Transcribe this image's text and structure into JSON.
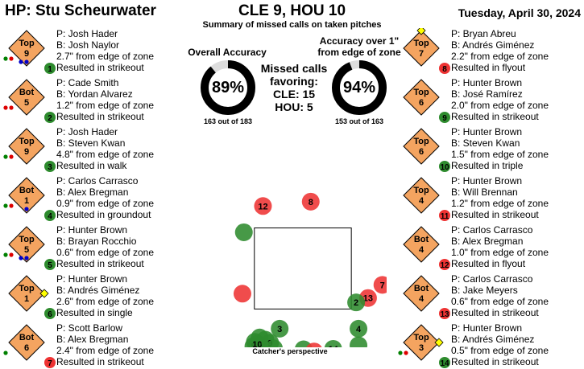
{
  "header": {
    "umpire": "HP: Stu Scheurwater",
    "score": "CLE 9, HOU 10",
    "subtitle": "Summary of missed calls on taken pitches",
    "date": "Tuesday, April 30, 2024"
  },
  "accuracy": {
    "overall_label": "Overall Accuracy",
    "overall_pct": "89%",
    "overall_value": 89,
    "overall_count": "163 out of 183",
    "over1_label_line1": "Accuracy over 1\"",
    "over1_label_line2": "from edge of zone",
    "over1_pct": "94%",
    "over1_value": 94,
    "over1_count": "153 out of 163"
  },
  "favoring": {
    "line1": "Missed calls",
    "line2": "favoring:",
    "cle": "CLE: 15",
    "hou": "HOU: 5"
  },
  "catcher_label": "Catcher's perspective",
  "colors": {
    "green": "#2e8b2e",
    "red": "#ee3333",
    "diamond": "#f4a460",
    "base": "#ffff00",
    "runner": "#0000cc",
    "out_green": "#008000",
    "out_red": "#dd0000"
  },
  "calls_left": [
    {
      "half": "Top",
      "inning": "9",
      "pitcher": "P: Josh Hader",
      "batter": "B: Josh Naylor",
      "dist": "2.7\" from edge of zone",
      "result": "Resulted in strikeout",
      "num": "1",
      "favor": "green",
      "bases": [
        false,
        false,
        false
      ],
      "runners": [
        true,
        true,
        false
      ],
      "outs": [
        "green",
        "red"
      ]
    },
    {
      "half": "Bot",
      "inning": "5",
      "pitcher": "P: Cade Smith",
      "batter": "B: Yordan Alvarez",
      "dist": "1.2\" from edge of zone",
      "result": "Resulted in strikeout",
      "num": "2",
      "favor": "green",
      "bases": [
        false,
        false,
        false
      ],
      "runners": [
        false,
        false,
        false
      ],
      "outs": [
        "red",
        "red"
      ]
    },
    {
      "half": "Top",
      "inning": "9",
      "pitcher": "P: Josh Hader",
      "batter": "B: Steven Kwan",
      "dist": "4.8\" from edge of zone",
      "result": "Resulted in walk",
      "num": "3",
      "favor": "green",
      "bases": [
        false,
        false,
        false
      ],
      "runners": [
        false,
        false,
        false
      ],
      "outs": [
        "green",
        "red"
      ]
    },
    {
      "half": "Bot",
      "inning": "1",
      "pitcher": "P: Carlos Carrasco",
      "batter": "B: Alex Bregman",
      "dist": "0.9\" from edge of zone",
      "result": "Resulted in groundout",
      "num": "4",
      "favor": "green",
      "bases": [
        false,
        false,
        false
      ],
      "runners": [
        false,
        true,
        false
      ],
      "outs": [
        "green",
        "red"
      ]
    },
    {
      "half": "Top",
      "inning": "5",
      "pitcher": "P: Hunter Brown",
      "batter": "B: Brayan Rocchio",
      "dist": "0.6\" from edge of zone",
      "result": "Resulted in strikeout",
      "num": "5",
      "favor": "green",
      "bases": [
        false,
        false,
        false
      ],
      "runners": [
        true,
        true,
        false
      ],
      "outs": [
        "green",
        "red"
      ]
    },
    {
      "half": "Top",
      "inning": "1",
      "pitcher": "P: Hunter Brown",
      "batter": "B: Andrés Giménez",
      "dist": "2.6\" from edge of zone",
      "result": "Resulted in single",
      "num": "6",
      "favor": "green",
      "bases": [
        true,
        false,
        false
      ],
      "runners": [
        false,
        false,
        false
      ],
      "outs": []
    },
    {
      "half": "Bot",
      "inning": "6",
      "pitcher": "P: Scott Barlow",
      "batter": "B: Alex Bregman",
      "dist": "2.4\" from edge of zone",
      "result": "Resulted in strikeout",
      "num": "7",
      "favor": "red",
      "bases": [
        false,
        false,
        false
      ],
      "runners": [
        false,
        false,
        false
      ],
      "outs": [
        "green"
      ]
    }
  ],
  "calls_right": [
    {
      "half": "Top",
      "inning": "7",
      "pitcher": "P: Bryan Abreu",
      "batter": "B: Andrés Giménez",
      "dist": "2.2\" from edge of zone",
      "result": "Resulted in flyout",
      "num": "8",
      "favor": "red",
      "bases": [
        false,
        true,
        false
      ],
      "runners": [
        false,
        false,
        false
      ],
      "outs": []
    },
    {
      "half": "Top",
      "inning": "6",
      "pitcher": "P: Hunter Brown",
      "batter": "B: José Ramírez",
      "dist": "2.0\" from edge of zone",
      "result": "Resulted in strikeout",
      "num": "9",
      "favor": "green",
      "bases": [
        false,
        false,
        false
      ],
      "runners": [
        false,
        false,
        false
      ],
      "outs": []
    },
    {
      "half": "Top",
      "inning": "6",
      "pitcher": "P: Hunter Brown",
      "batter": "B: Steven Kwan",
      "dist": "1.5\" from edge of zone",
      "result": "Resulted in triple",
      "num": "10",
      "favor": "green",
      "bases": [
        false,
        false,
        false
      ],
      "runners": [
        false,
        false,
        false
      ],
      "outs": []
    },
    {
      "half": "Top",
      "inning": "4",
      "pitcher": "P: Hunter Brown",
      "batter": "B: Will Brennan",
      "dist": "1.2\" from edge of zone",
      "result": "Resulted in strikeout",
      "num": "11",
      "favor": "red",
      "bases": [
        false,
        false,
        false
      ],
      "runners": [
        false,
        false,
        false
      ],
      "outs": []
    },
    {
      "half": "Bot",
      "inning": "4",
      "pitcher": "P: Carlos Carrasco",
      "batter": "B: Alex Bregman",
      "dist": "1.0\" from edge of zone",
      "result": "Resulted in flyout",
      "num": "12",
      "favor": "red",
      "bases": [
        false,
        false,
        false
      ],
      "runners": [
        false,
        false,
        false
      ],
      "outs": []
    },
    {
      "half": "Bot",
      "inning": "4",
      "pitcher": "P: Carlos Carrasco",
      "batter": "B: Jake Meyers",
      "dist": "0.6\" from edge of zone",
      "result": "Resulted in strikeout",
      "num": "13",
      "favor": "red",
      "bases": [
        false,
        false,
        false
      ],
      "runners": [
        false,
        false,
        false
      ],
      "outs": []
    },
    {
      "half": "Top",
      "inning": "3",
      "pitcher": "P: Hunter Brown",
      "batter": "B: Andrés Giménez",
      "dist": "0.5\" from edge of zone",
      "result": "Resulted in strikeout",
      "num": "14",
      "favor": "green",
      "bases": [
        true,
        false,
        false
      ],
      "runners": [
        false,
        false,
        false
      ],
      "outs": [
        "green",
        "red"
      ]
    }
  ],
  "pitches": [
    {
      "num": "12",
      "favor": "red",
      "x": -0.65,
      "z": 4.05
    },
    {
      "num": "8",
      "favor": "red",
      "x": 0.35,
      "z": 4.15
    },
    {
      "num": "",
      "favor": "green",
      "x": -1.05,
      "z": 3.45
    },
    {
      "num": "7",
      "favor": "red",
      "x": 1.85,
      "z": 2.25
    },
    {
      "num": "",
      "favor": "red",
      "x": -1.08,
      "z": 2.05
    },
    {
      "num": "13",
      "favor": "red",
      "x": 1.55,
      "z": 1.95
    },
    {
      "num": "2",
      "favor": "green",
      "x": 1.3,
      "z": 1.85
    },
    {
      "num": "4",
      "favor": "green",
      "x": 1.35,
      "z": 1.25
    },
    {
      "num": "3",
      "favor": "green",
      "x": -0.3,
      "z": 1.25
    },
    {
      "num": "",
      "favor": "green",
      "x": -0.72,
      "z": 1.05
    },
    {
      "num": "",
      "favor": "green",
      "x": -0.6,
      "z": 1.0
    },
    {
      "num": "",
      "favor": "green",
      "x": -0.82,
      "z": 0.95
    },
    {
      "num": "5",
      "favor": "green",
      "x": -0.85,
      "z": 0.85
    },
    {
      "num": "10",
      "favor": "green",
      "x": -0.77,
      "z": 0.9
    },
    {
      "num": "9",
      "favor": "green",
      "x": -0.5,
      "z": 0.93
    },
    {
      "num": "",
      "favor": "green",
      "x": -0.42,
      "z": 0.8
    },
    {
      "num": "",
      "favor": "green",
      "x": 0.2,
      "z": 0.78
    },
    {
      "num": "",
      "favor": "red",
      "x": 0.42,
      "z": 0.73
    },
    {
      "num": "14",
      "favor": "green",
      "x": 0.82,
      "z": 0.79
    },
    {
      "num": "",
      "favor": "green",
      "x": 1.35,
      "z": 0.87
    }
  ]
}
